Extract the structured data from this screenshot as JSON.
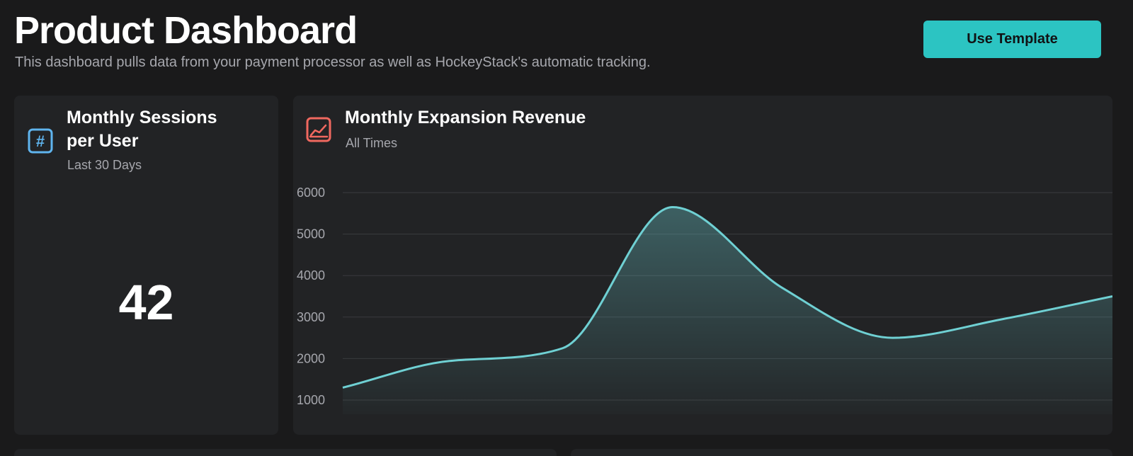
{
  "header": {
    "title": "Product Dashboard",
    "subtitle": "This dashboard pulls data from your payment processor as well as HockeyStack's automatic tracking.",
    "template_button": "Use Template"
  },
  "colors": {
    "background": "#1a1a1b",
    "card": "#222325",
    "accent": "#2cc4c2",
    "line": "#6fd0d3",
    "hash_icon": "#5fb4ee",
    "chart_icon": "#f0685f",
    "muted_text": "#a6a7ad"
  },
  "cards": {
    "sessions": {
      "icon": "hash-icon",
      "title_line1": "Monthly Sessions",
      "title_line2": "per User",
      "period": "Last 30 Days",
      "value": "42"
    },
    "revenue": {
      "icon": "area-chart-icon",
      "title": "Monthly Expansion Revenue",
      "period": "All Times"
    }
  },
  "chart_data": {
    "type": "area",
    "title": "Monthly Expansion Revenue",
    "subtitle": "All Times",
    "xlabel": "",
    "ylabel": "",
    "ylim": [
      1000,
      6000
    ],
    "yticks": [
      "6000",
      "5000",
      "4000",
      "3000",
      "2000",
      "1000"
    ],
    "grid": true,
    "series": [
      {
        "values": [
          1300,
          1950,
          2250,
          5650,
          3700,
          2500,
          2950,
          3500
        ]
      }
    ]
  }
}
